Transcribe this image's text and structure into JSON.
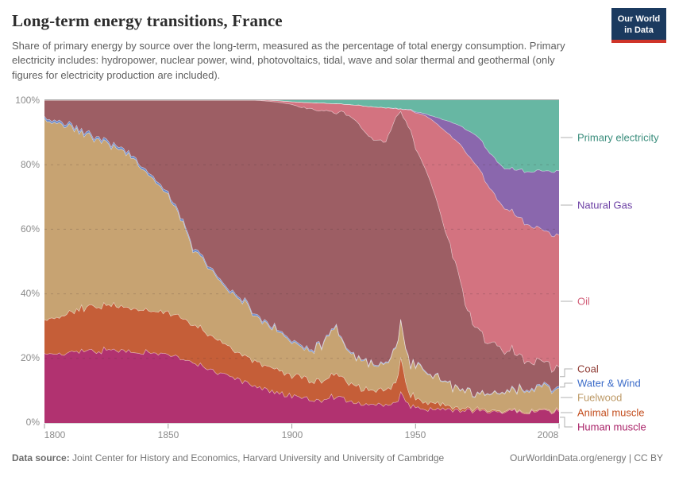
{
  "header": {
    "title": "Long-term energy transitions, France",
    "subtitle": "Share of primary energy by source over the long-term, measured as the percentage of total energy consumption. Primary electricity includes: hydropower, nuclear power, wind, photovoltaics, tidal, wave and solar thermal and geothermal (only figures for electricity production are included).",
    "logo": {
      "line1": "Our World",
      "line2": "in Data",
      "bg_color": "#1b3a5f",
      "accent_color": "#cf3429"
    }
  },
  "axes": {
    "y_tick_labels": [
      "100%",
      "80%",
      "60%",
      "40%",
      "20%",
      "0%"
    ],
    "x_tick_labels": [
      "1800",
      "1850",
      "1900",
      "1950",
      "2008"
    ]
  },
  "footer": {
    "source_label": "Data source:",
    "source_text": " Joint Center for History and Economics, Harvard University and University of Cambridge",
    "link_text": "OurWorldinData.org/energy | CC BY"
  },
  "chart_data": {
    "type": "area",
    "stacked": true,
    "title": "Long-term energy transitions, France",
    "unit": "%",
    "ylim": [
      0,
      100
    ],
    "xlim": [
      1800,
      2008
    ],
    "grid": "dashed horizontal lines at 20,40,60,80",
    "legend_position": "right",
    "yticks": [
      0,
      20,
      40,
      60,
      80,
      100
    ],
    "xticks": [
      1800,
      1850,
      1900,
      1950,
      2008
    ],
    "years": [
      1800,
      1805,
      1810,
      1815,
      1820,
      1825,
      1830,
      1835,
      1840,
      1845,
      1850,
      1853,
      1856,
      1860,
      1864,
      1868,
      1872,
      1876,
      1880,
      1885,
      1890,
      1895,
      1900,
      1904,
      1908,
      1912,
      1915,
      1918,
      1920,
      1923,
      1926,
      1929,
      1932,
      1935,
      1938,
      1940,
      1942,
      1944,
      1946,
      1948,
      1950,
      1953,
      1956,
      1959,
      1962,
      1965,
      1968,
      1971,
      1974,
      1977,
      1980,
      1983,
      1986,
      1989,
      1992,
      1995,
      1998,
      2001,
      2004,
      2008
    ],
    "series": [
      {
        "name": "Human muscle",
        "color": "#b13270",
        "label_color": "#aa2369",
        "values": [
          21.5,
          21.8,
          22.0,
          22.2,
          22.2,
          22.3,
          22.3,
          22.0,
          21.8,
          21.6,
          21.4,
          20.8,
          20.0,
          19.0,
          17.5,
          16.2,
          15.0,
          13.8,
          12.8,
          11.6,
          10.4,
          9.2,
          8.2,
          7.8,
          7.4,
          7.1,
          8.3,
          8.1,
          7.5,
          6.8,
          6.3,
          6.0,
          5.7,
          5.5,
          5.5,
          5.7,
          6.2,
          8.6,
          6.5,
          5.2,
          4.7,
          4.5,
          4.3,
          4.2,
          4.0,
          3.9,
          3.8,
          3.7,
          3.6,
          3.6,
          3.6,
          3.6,
          3.6,
          3.5,
          3.5,
          3.5,
          3.5,
          3.5,
          3.5,
          3.5
        ]
      },
      {
        "name": "Animal muscle",
        "color": "#c55e38",
        "label_color": "#c34d1d",
        "values": [
          10.5,
          11.2,
          12.0,
          13.0,
          13.6,
          14.0,
          13.7,
          13.4,
          13.2,
          13.0,
          12.9,
          12.8,
          12.3,
          11.8,
          11.0,
          10.3,
          9.7,
          9.0,
          8.2,
          7.9,
          7.6,
          6.9,
          6.5,
          6.2,
          5.9,
          5.8,
          6.9,
          7.0,
          6.3,
          5.5,
          5.0,
          4.8,
          4.6,
          4.5,
          4.6,
          5.0,
          6.2,
          11.1,
          5.5,
          3.5,
          2.8,
          2.3,
          1.9,
          1.6,
          1.3,
          1.0,
          0.8,
          0.6,
          0.5,
          0.4,
          0.4,
          0.3,
          0.3,
          0.3,
          0.3,
          0.3,
          0.3,
          0.3,
          0.3,
          0.4
        ]
      },
      {
        "name": "Fuelwood",
        "color": "#c7a372",
        "label_color": "#bd9a67",
        "values": [
          62.3,
          60.0,
          58.0,
          54.8,
          52.2,
          50.2,
          49.0,
          46.6,
          43.0,
          39.9,
          36.7,
          32.7,
          29.7,
          23.2,
          22.0,
          20.0,
          18.3,
          17.2,
          17.0,
          14.5,
          13.0,
          12.2,
          10.4,
          9.0,
          9.5,
          10.8,
          13.5,
          14.3,
          11.2,
          9.9,
          9.0,
          8.6,
          8.2,
          7.8,
          8.2,
          9.0,
          10.5,
          12.1,
          10.5,
          9.8,
          10.0,
          9.3,
          8.8,
          8.4,
          7.3,
          6.4,
          5.7,
          5.1,
          4.8,
          4.7,
          4.9,
          5.3,
          5.7,
          6.2,
          6.6,
          6.9,
          7.0,
          7.1,
          7.1,
          6.9
        ]
      },
      {
        "name": "Water & Wind",
        "color": "#6b89c9",
        "label_color": "#3c6cc9",
        "values": [
          0.7,
          0.7,
          0.7,
          0.7,
          0.7,
          0.7,
          0.7,
          0.7,
          0.7,
          0.7,
          0.7,
          0.7,
          0.7,
          0.7,
          0.7,
          0.6,
          0.6,
          0.6,
          0.6,
          0.6,
          0.5,
          0.5,
          0.5,
          0.5,
          0.5,
          0.4,
          0.4,
          0.4,
          0.4,
          0.4,
          0.3,
          0.3,
          0.3,
          0.3,
          0.3,
          0.3,
          0.3,
          0.3,
          0.3,
          0.3,
          0.3,
          0.3,
          0.2,
          0.2,
          0.2,
          0.2,
          0.2,
          0.2,
          0.2,
          0.2,
          0.2,
          0.2,
          0.2,
          0.3,
          0.3,
          0.3,
          0.4,
          0.4,
          0.5,
          0.6
        ]
      },
      {
        "name": "Coal",
        "color": "#9d5e64",
        "label_color": "#8e3a33",
        "values": [
          5.0,
          6.3,
          7.3,
          9.3,
          11.3,
          12.8,
          14.3,
          17.3,
          21.3,
          24.8,
          28.3,
          33.0,
          37.3,
          45.3,
          48.8,
          52.9,
          56.4,
          59.4,
          61.4,
          65.4,
          68.2,
          70.5,
          73.0,
          74.3,
          73.2,
          72.5,
          67.2,
          66.5,
          71.2,
          72.7,
          72.7,
          71.0,
          69.3,
          69.3,
          68.1,
          70.9,
          71.6,
          64.3,
          70.5,
          71.7,
          66.9,
          63.6,
          59.5,
          53.5,
          47.0,
          40.1,
          33.2,
          24.9,
          21.0,
          17.9,
          15.4,
          14.1,
          12.7,
          11.8,
          10.4,
          9.2,
          8.3,
          7.3,
          6.6,
          5.9
        ]
      },
      {
        "name": "Oil",
        "color": "#d37380",
        "label_color": "#d2607a",
        "values": [
          0,
          0,
          0,
          0,
          0,
          0,
          0,
          0,
          0,
          0,
          0,
          0,
          0,
          0,
          0,
          0,
          0,
          0,
          0,
          0,
          0.3,
          0.5,
          0.9,
          1.5,
          2.0,
          2.3,
          2.5,
          2.8,
          2.2,
          3.3,
          5.1,
          7.5,
          9.9,
          10.4,
          10.9,
          6.5,
          2.5,
          0.8,
          3.8,
          6.5,
          11.3,
          15.5,
          19.5,
          24.5,
          30.5,
          36.8,
          42.5,
          48.5,
          50.4,
          50.0,
          48.0,
          45.0,
          44.3,
          43.4,
          42.7,
          42.0,
          41.3,
          41.0,
          40.9,
          40.9
        ]
      },
      {
        "name": "Natural Gas",
        "color": "#8a67ad",
        "label_color": "#6d41a5",
        "values": [
          0,
          0,
          0,
          0,
          0,
          0,
          0,
          0,
          0,
          0,
          0,
          0,
          0,
          0,
          0,
          0,
          0,
          0,
          0,
          0,
          0,
          0,
          0,
          0,
          0,
          0,
          0,
          0,
          0,
          0,
          0,
          0,
          0,
          0,
          0,
          0.1,
          0.1,
          0.1,
          0.1,
          0.2,
          0.3,
          0.5,
          1.0,
          2.1,
          3.5,
          4.6,
          5.8,
          7.5,
          9.0,
          10.2,
          11.0,
          11.5,
          12.2,
          13.2,
          14.7,
          16.0,
          17.2,
          18.4,
          19.1,
          19.9
        ]
      },
      {
        "name": "Primary electricity",
        "color": "#67b7a3",
        "label_color": "#3a8d7c",
        "values": [
          0,
          0,
          0,
          0,
          0,
          0,
          0,
          0,
          0,
          0,
          0,
          0,
          0,
          0,
          0,
          0,
          0,
          0,
          0,
          0,
          0,
          0.2,
          0.5,
          0.7,
          0.8,
          0.9,
          1.0,
          1.1,
          1.2,
          1.4,
          1.5,
          1.8,
          2.0,
          2.2,
          2.4,
          2.5,
          2.6,
          2.7,
          2.8,
          2.8,
          3.7,
          4.0,
          4.8,
          5.5,
          6.2,
          7.0,
          8.0,
          9.5,
          10.5,
          13.0,
          16.5,
          19.0,
          21.0,
          21.3,
          21.5,
          21.8,
          22.0,
          22.0,
          22.0,
          21.9
        ]
      }
    ]
  }
}
